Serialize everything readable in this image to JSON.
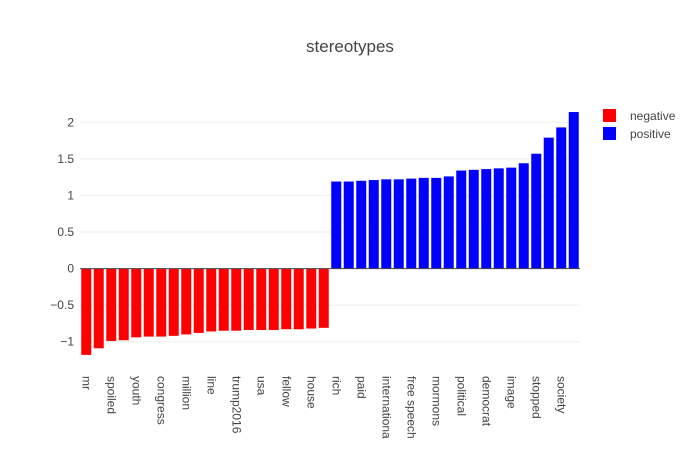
{
  "chart_data": {
    "type": "bar",
    "title": "stereotypes",
    "xlabel": "",
    "ylabel": "",
    "ylim": [
      -1.25,
      2.25
    ],
    "yticks": [
      -1,
      -0.5,
      0,
      0.5,
      1,
      1.5,
      2
    ],
    "ytick_labels": [
      "−1",
      "−0.5",
      "0",
      "0.5",
      "1",
      "1.5",
      "2"
    ],
    "grid": true,
    "legend_position": "top-right",
    "series": [
      {
        "name": "negative",
        "color": "#ff0000",
        "categories": [
          "mr",
          "",
          "spoiled",
          "",
          "youth",
          "",
          "congress",
          "",
          "million",
          "",
          "line",
          "",
          "trump2016",
          "",
          "usa",
          "",
          "fellow",
          "",
          "house",
          ""
        ],
        "values": [
          -1.18,
          -1.09,
          -0.99,
          -0.98,
          -0.94,
          -0.93,
          -0.93,
          -0.92,
          -0.9,
          -0.88,
          -0.86,
          -0.85,
          -0.85,
          -0.84,
          -0.84,
          -0.84,
          -0.83,
          -0.83,
          -0.82,
          -0.81
        ]
      },
      {
        "name": "positive",
        "color": "#0000ff",
        "categories": [
          "rich",
          "",
          "paid",
          "",
          "internationa",
          "",
          "free speech",
          "",
          "mormons",
          "",
          "political",
          "",
          "democrat",
          "",
          "image",
          "",
          "stopped",
          "",
          "society",
          ""
        ],
        "values": [
          1.19,
          1.19,
          1.2,
          1.21,
          1.22,
          1.22,
          1.23,
          1.24,
          1.24,
          1.26,
          1.34,
          1.35,
          1.36,
          1.37,
          1.38,
          1.44,
          1.57,
          1.79,
          1.93,
          2.14
        ]
      }
    ]
  }
}
